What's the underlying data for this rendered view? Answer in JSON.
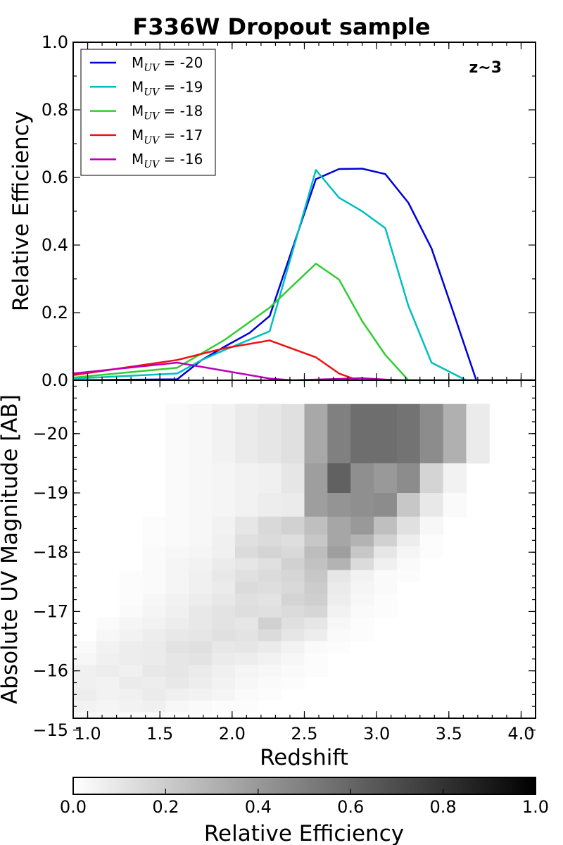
{
  "chart_data": [
    {
      "type": "line",
      "title": "F336W Dropout sample",
      "xlabel": "",
      "ylabel": "Relative Efficiency",
      "xlim": [
        0.9,
        4.1
      ],
      "ylim": [
        0.0,
        1.0
      ],
      "y_ticks": [
        "0.0",
        "0.2",
        "0.4",
        "0.6",
        "0.8",
        "1.0"
      ],
      "annotation": "z~3",
      "legend": {
        "placement": "top-left",
        "label_prefix": "M",
        "label_sub": "UV"
      },
      "series": [
        {
          "name": " = -20",
          "color": "#0000dd",
          "points": [
            [
              0.9,
              0.0
            ],
            [
              1.62,
              0.003
            ],
            [
              1.79,
              0.06
            ],
            [
              1.95,
              0.1
            ],
            [
              2.12,
              0.14
            ],
            [
              2.26,
              0.19
            ],
            [
              2.58,
              0.595
            ],
            [
              2.74,
              0.625
            ],
            [
              2.9,
              0.626
            ],
            [
              3.06,
              0.61
            ],
            [
              3.22,
              0.525
            ],
            [
              3.38,
              0.39
            ],
            [
              3.54,
              0.19
            ],
            [
              3.69,
              0.0
            ],
            [
              4.1,
              0.0
            ]
          ]
        },
        {
          "name": " = -19",
          "color": "#00bfbf",
          "points": [
            [
              0.9,
              0.005
            ],
            [
              1.62,
              0.02
            ],
            [
              1.79,
              0.06
            ],
            [
              1.95,
              0.09
            ],
            [
              2.12,
              0.12
            ],
            [
              2.26,
              0.145
            ],
            [
              2.58,
              0.622
            ],
            [
              2.74,
              0.54
            ],
            [
              2.9,
              0.5
            ],
            [
              3.06,
              0.45
            ],
            [
              3.22,
              0.22
            ],
            [
              3.38,
              0.052
            ],
            [
              3.62,
              0.0
            ],
            [
              4.1,
              0.0
            ]
          ]
        },
        {
          "name": " = -18",
          "color": "#33cc33",
          "points": [
            [
              0.9,
              0.008
            ],
            [
              1.62,
              0.037
            ],
            [
              1.95,
              0.12
            ],
            [
              2.26,
              0.215
            ],
            [
              2.58,
              0.345
            ],
            [
              2.74,
              0.298
            ],
            [
              2.9,
              0.175
            ],
            [
              3.06,
              0.075
            ],
            [
              3.22,
              0.0
            ],
            [
              4.1,
              0.0
            ]
          ]
        },
        {
          "name": " = -17",
          "color": "#ee1111",
          "points": [
            [
              0.9,
              0.015
            ],
            [
              1.62,
              0.06
            ],
            [
              1.95,
              0.095
            ],
            [
              2.26,
              0.118
            ],
            [
              2.58,
              0.068
            ],
            [
              2.74,
              0.02
            ],
            [
              2.87,
              0.0
            ],
            [
              4.1,
              0.0
            ]
          ]
        },
        {
          "name": " = -16",
          "color": "#bb00bb",
          "points": [
            [
              0.9,
              0.02
            ],
            [
              1.62,
              0.052
            ],
            [
              1.95,
              0.028
            ],
            [
              2.26,
              0.005
            ],
            [
              2.42,
              0.0
            ],
            [
              2.9,
              0.006
            ],
            [
              3.06,
              0.002
            ],
            [
              3.2,
              0.0
            ],
            [
              4.1,
              0.0
            ]
          ]
        }
      ]
    },
    {
      "type": "heatmap",
      "xlabel": "Redshift",
      "ylabel": "Absolute UV Magnitude [AB]",
      "xlim": [
        0.9,
        4.1
      ],
      "ylim": [
        -15.2,
        -20.9
      ],
      "x_ticks": [
        "1.0",
        "1.5",
        "2.0",
        "2.5",
        "3.0",
        "3.5",
        "4.0"
      ],
      "y_ticks": [
        "−20",
        "−19",
        "−18",
        "−17",
        "−16",
        "−15"
      ],
      "colormap": "gray_r",
      "bands": [
        {
          "mag_range": [
            -20.5,
            -19.5
          ],
          "x_start": 1.54,
          "dx": 0.16,
          "values": [
            0.02,
            0.03,
            0.05,
            0.08,
            0.1,
            0.12,
            0.34,
            0.5,
            0.57,
            0.57,
            0.55,
            0.45,
            0.31,
            0.08,
            0.0
          ]
        },
        {
          "mag_range": [
            -19.5,
            -19.0
          ],
          "x_start": 1.54,
          "dx": 0.16,
          "values": [
            0.02,
            0.03,
            0.04,
            0.05,
            0.06,
            0.1,
            0.38,
            0.62,
            0.44,
            0.4,
            0.45,
            0.17,
            0.05,
            0.0,
            0.0
          ]
        },
        {
          "mag_range": [
            -19.0,
            -18.6
          ],
          "x_start": 1.54,
          "dx": 0.16,
          "values": [
            0.02,
            0.03,
            0.04,
            0.05,
            0.07,
            0.08,
            0.38,
            0.42,
            0.44,
            0.45,
            0.22,
            0.09,
            0.02,
            0.0,
            0.0
          ]
        },
        {
          "mag_range": [
            -18.6,
            -18.3
          ],
          "x_start": 1.38,
          "dx": 0.16,
          "values": [
            0.01,
            0.02,
            0.03,
            0.05,
            0.1,
            0.15,
            0.18,
            0.25,
            0.35,
            0.4,
            0.25,
            0.12,
            0.03,
            0.0,
            0.0,
            0.0
          ]
        },
        {
          "mag_range": [
            -18.3,
            -18.1
          ],
          "x_start": 1.38,
          "dx": 0.16,
          "values": [
            0.01,
            0.02,
            0.03,
            0.06,
            0.12,
            0.14,
            0.13,
            0.22,
            0.35,
            0.3,
            0.18,
            0.07,
            0.01,
            0.0,
            0.0,
            0.0
          ]
        },
        {
          "mag_range": [
            -18.1,
            -17.9
          ],
          "x_start": 1.38,
          "dx": 0.16,
          "values": [
            0.02,
            0.03,
            0.04,
            0.06,
            0.14,
            0.17,
            0.15,
            0.26,
            0.38,
            0.22,
            0.1,
            0.04,
            0.01,
            0.0,
            0.0,
            0.0
          ]
        },
        {
          "mag_range": [
            -17.9,
            -17.7
          ],
          "x_start": 1.38,
          "dx": 0.16,
          "values": [
            0.02,
            0.04,
            0.05,
            0.08,
            0.1,
            0.12,
            0.18,
            0.24,
            0.3,
            0.14,
            0.06,
            0.02,
            0.0,
            0.0,
            0.0,
            0.0
          ]
        },
        {
          "mag_range": [
            -17.7,
            -17.5
          ],
          "x_start": 1.22,
          "dx": 0.16,
          "values": [
            0.01,
            0.02,
            0.04,
            0.06,
            0.09,
            0.12,
            0.14,
            0.16,
            0.22,
            0.1,
            0.05,
            0.02,
            0.01,
            0.0,
            0.0,
            0.0,
            0.0
          ]
        },
        {
          "mag_range": [
            -17.5,
            -17.3
          ],
          "x_start": 1.22,
          "dx": 0.16,
          "values": [
            0.01,
            0.02,
            0.04,
            0.06,
            0.08,
            0.14,
            0.13,
            0.15,
            0.2,
            0.08,
            0.04,
            0.02,
            0.0,
            0.0,
            0.0,
            0.0,
            0.0
          ]
        },
        {
          "mag_range": [
            -17.3,
            -17.1
          ],
          "x_start": 1.22,
          "dx": 0.16,
          "values": [
            0.01,
            0.03,
            0.05,
            0.07,
            0.09,
            0.12,
            0.11,
            0.17,
            0.19,
            0.07,
            0.03,
            0.01,
            0.0,
            0.0,
            0.0,
            0.0,
            0.0
          ]
        },
        {
          "mag_range": [
            -17.1,
            -16.9
          ],
          "x_start": 1.22,
          "dx": 0.16,
          "values": [
            0.02,
            0.04,
            0.06,
            0.09,
            0.11,
            0.13,
            0.12,
            0.14,
            0.16,
            0.05,
            0.02,
            0.01,
            0.0,
            0.0,
            0.0,
            0.0,
            0.0
          ]
        },
        {
          "mag_range": [
            -16.9,
            -16.7
          ],
          "x_start": 1.06,
          "dx": 0.16,
          "values": [
            0.02,
            0.04,
            0.05,
            0.07,
            0.09,
            0.11,
            0.1,
            0.18,
            0.12,
            0.1,
            0.03,
            0.01,
            0.0,
            0.0,
            0.0,
            0.0,
            0.0,
            0.0
          ]
        },
        {
          "mag_range": [
            -16.7,
            -16.5
          ],
          "x_start": 1.06,
          "dx": 0.16,
          "values": [
            0.03,
            0.05,
            0.07,
            0.09,
            0.1,
            0.12,
            0.11,
            0.14,
            0.1,
            0.07,
            0.02,
            0.01,
            0.0,
            0.0,
            0.0,
            0.0,
            0.0,
            0.0
          ]
        },
        {
          "mag_range": [
            -16.5,
            -16.3
          ],
          "x_start": 0.9,
          "dx": 0.16,
          "values": [
            0.02,
            0.05,
            0.07,
            0.08,
            0.11,
            0.12,
            0.09,
            0.1,
            0.08,
            0.05,
            0.02,
            0.01,
            0.0,
            0.0,
            0.0,
            0.0,
            0.0,
            0.0,
            0.0
          ]
        },
        {
          "mag_range": [
            -16.3,
            -16.1
          ],
          "x_start": 0.9,
          "dx": 0.16,
          "values": [
            0.03,
            0.06,
            0.07,
            0.08,
            0.1,
            0.11,
            0.08,
            0.07,
            0.05,
            0.03,
            0.01,
            0.0,
            0.0,
            0.0,
            0.0,
            0.0,
            0.0,
            0.0,
            0.0
          ]
        },
        {
          "mag_range": [
            -16.1,
            -15.9
          ],
          "x_start": 0.9,
          "dx": 0.16,
          "values": [
            0.06,
            0.07,
            0.06,
            0.09,
            0.1,
            0.08,
            0.06,
            0.04,
            0.03,
            0.02,
            0.01,
            0.0,
            0.0,
            0.0,
            0.0,
            0.0,
            0.0,
            0.0,
            0.0
          ]
        },
        {
          "mag_range": [
            -15.9,
            -15.7
          ],
          "x_start": 0.9,
          "dx": 0.16,
          "values": [
            0.06,
            0.05,
            0.08,
            0.07,
            0.09,
            0.07,
            0.05,
            0.03,
            0.02,
            0.01,
            0.0,
            0.0,
            0.0,
            0.0,
            0.0,
            0.0,
            0.0,
            0.0,
            0.0
          ]
        },
        {
          "mag_range": [
            -15.7,
            -15.5
          ],
          "x_start": 0.9,
          "dx": 0.16,
          "values": [
            0.07,
            0.05,
            0.06,
            0.08,
            0.06,
            0.05,
            0.04,
            0.02,
            0.01,
            0.0,
            0.0,
            0.0,
            0.0,
            0.0,
            0.0,
            0.0,
            0.0,
            0.0,
            0.0
          ]
        },
        {
          "mag_range": [
            -15.5,
            -15.3
          ],
          "x_start": 0.9,
          "dx": 0.16,
          "values": [
            0.05,
            0.04,
            0.05,
            0.06,
            0.03,
            0.02,
            0.01,
            0.01,
            0.0,
            0.0,
            0.0,
            0.0,
            0.0,
            0.0,
            0.0,
            0.0,
            0.0,
            0.0,
            0.0
          ]
        },
        {
          "mag_range": [
            -15.3,
            -15.0
          ],
          "x_start": 0.9,
          "dx": 0.16,
          "values": [
            0.03,
            0.03,
            0.02,
            0.02,
            0.01,
            0.01,
            0.0,
            0.0,
            0.0,
            0.0,
            0.0,
            0.0,
            0.0,
            0.0,
            0.0,
            0.0,
            0.0,
            0.0,
            0.0
          ]
        }
      ]
    },
    {
      "type": "colorbar",
      "label": "Relative Efficiency",
      "range": [
        0.0,
        1.0
      ],
      "ticks": [
        "0.0",
        "0.2",
        "0.4",
        "0.6",
        "0.8",
        "1.0"
      ]
    }
  ]
}
